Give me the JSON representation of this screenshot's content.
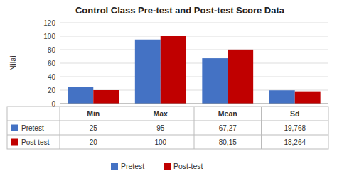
{
  "chart_data": {
    "type": "bar",
    "title": "Control Class Pre-test and Post-test Score Data",
    "y_label": "Nilai",
    "categories": [
      "Min",
      "Max",
      "Mean",
      "Sd"
    ],
    "series": [
      {
        "name": "Pretest",
        "color": "#4472C4",
        "values": [
          25,
          95,
          67.27,
          19.768
        ],
        "value_labels": [
          "25",
          "95",
          "67,27",
          "19,768"
        ]
      },
      {
        "name": "Post-test",
        "color": "#C00000",
        "values": [
          20,
          100,
          80.15,
          18.264
        ],
        "value_labels": [
          "20",
          "100",
          "80,15",
          "18,264"
        ]
      }
    ],
    "ylim": [
      0,
      120
    ],
    "yticks": [
      0,
      20,
      40,
      60,
      80,
      100,
      120
    ],
    "grid": true,
    "legend": "bottom",
    "tick_labels": "y"
  }
}
